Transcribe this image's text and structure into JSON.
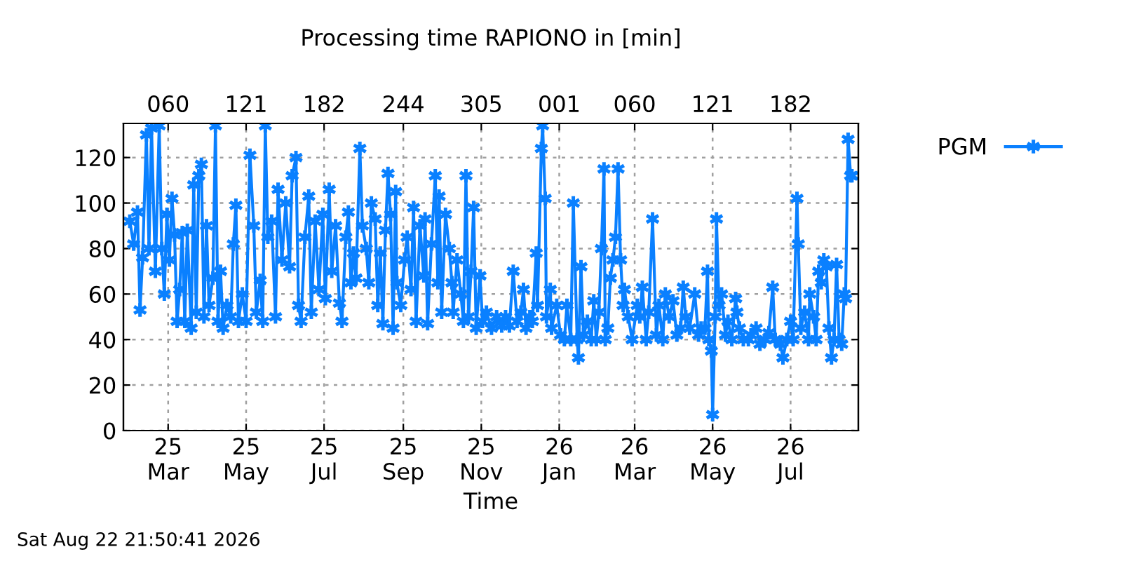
{
  "chart_data": {
    "type": "line",
    "title": "Processing time RAPIONO in [min]",
    "xlabel": "Time",
    "annotations": [
      "Sat Aug 22 21:50:41 2026"
    ],
    "xlim": [
      "2025-01-25",
      "2026-08-23"
    ],
    "xticks": [
      {
        "value": "2025-03-01",
        "label": "25\nMar"
      },
      {
        "value": "2025-05-01",
        "label": "25\nMay"
      },
      {
        "value": "2025-07-01",
        "label": "25\nJul"
      },
      {
        "value": "2025-09-01",
        "label": "25\nSep"
      },
      {
        "value": "2025-11-01",
        "label": "25\nNov"
      },
      {
        "value": "2026-01-01",
        "label": "26\nJan"
      },
      {
        "value": "2026-03-01",
        "label": "26\nMar"
      },
      {
        "value": "2026-05-01",
        "label": "26\nMay"
      },
      {
        "value": "2026-07-01",
        "label": "26\nJul"
      }
    ],
    "x2lim": [
      "2025-01-25",
      "2026-08-23"
    ],
    "x2ticks": [
      {
        "value": "2025-03-01",
        "label": "060"
      },
      {
        "value": "2025-05-01",
        "label": "121"
      },
      {
        "value": "2025-07-01",
        "label": "182"
      },
      {
        "value": "2025-09-01",
        "label": "244"
      },
      {
        "value": "2025-11-01",
        "label": "305"
      },
      {
        "value": "2026-01-01",
        "label": "001"
      },
      {
        "value": "2026-03-01",
        "label": "060"
      },
      {
        "value": "2026-05-01",
        "label": "121"
      },
      {
        "value": "2026-07-01",
        "label": "182"
      }
    ],
    "ylim": [
      0,
      135
    ],
    "yticks": [
      0,
      20,
      40,
      60,
      80,
      100,
      120
    ],
    "grid": true,
    "legend": "top right",
    "marker": "cross",
    "line_style": "solid",
    "series": [
      {
        "name": "PGM",
        "color": "#0a80ff",
        "x": [
          "2025-01-30",
          "2025-02-02",
          "2025-02-05",
          "2025-02-07",
          "2025-02-09",
          "2025-02-12",
          "2025-02-14",
          "2025-02-16",
          "2025-02-19",
          "2025-02-22",
          "2025-02-24",
          "2025-02-26",
          "2025-02-28",
          "2025-03-02",
          "2025-03-04",
          "2025-03-06",
          "2025-03-08",
          "2025-03-10",
          "2025-03-12",
          "2025-03-14",
          "2025-03-16",
          "2025-03-19",
          "2025-03-21",
          "2025-03-23",
          "2025-03-25",
          "2025-03-27",
          "2025-03-29",
          "2025-03-31",
          "2025-04-02",
          "2025-04-05",
          "2025-04-07",
          "2025-04-09",
          "2025-04-11",
          "2025-04-13",
          "2025-04-16",
          "2025-04-19",
          "2025-04-21",
          "2025-04-23",
          "2025-04-25",
          "2025-04-28",
          "2025-05-01",
          "2025-05-04",
          "2025-05-07",
          "2025-05-09",
          "2025-05-12",
          "2025-05-14",
          "2025-05-16",
          "2025-05-18",
          "2025-05-21",
          "2025-05-24",
          "2025-05-26",
          "2025-05-29",
          "2025-06-01",
          "2025-06-04",
          "2025-06-06",
          "2025-06-09",
          "2025-06-11",
          "2025-06-13",
          "2025-06-16",
          "2025-06-19",
          "2025-06-21",
          "2025-06-24",
          "2025-06-27",
          "2025-06-30",
          "2025-07-02",
          "2025-07-05",
          "2025-07-07",
          "2025-07-10",
          "2025-07-13",
          "2025-07-15",
          "2025-07-18",
          "2025-07-20",
          "2025-07-22",
          "2025-07-24",
          "2025-07-26",
          "2025-07-29",
          "2025-07-31",
          "2025-08-03",
          "2025-08-05",
          "2025-08-07",
          "2025-08-10",
          "2025-08-12",
          "2025-08-14",
          "2025-08-16",
          "2025-08-18",
          "2025-08-20",
          "2025-08-22",
          "2025-08-24",
          "2025-08-26",
          "2025-08-27",
          "2025-08-30",
          "2025-09-02",
          "2025-09-04",
          "2025-09-07",
          "2025-09-09",
          "2025-09-11",
          "2025-09-14",
          "2025-09-17",
          "2025-09-18",
          "2025-09-20",
          "2025-09-23",
          "2025-09-26",
          "2025-09-28",
          "2025-09-29",
          "2025-10-01",
          "2025-10-04",
          "2025-10-07",
          "2025-10-09",
          "2025-10-10",
          "2025-10-13",
          "2025-10-16",
          "2025-10-18",
          "2025-10-20",
          "2025-10-22",
          "2025-10-24",
          "2025-10-26",
          "2025-10-28",
          "2025-10-31",
          "2025-11-02",
          "2025-11-05",
          "2025-11-09",
          "2025-11-13",
          "2025-11-17",
          "2025-11-20",
          "2025-11-23",
          "2025-11-26",
          "2025-11-29",
          "2025-12-02",
          "2025-12-04",
          "2025-12-06",
          "2025-12-09",
          "2025-12-11",
          "2025-12-14",
          "2025-12-15",
          "2025-12-18",
          "2025-12-19",
          "2025-12-21",
          "2025-12-22",
          "2025-12-25",
          "2025-12-26",
          "2025-12-30",
          "2026-01-02",
          "2026-01-05",
          "2026-01-07",
          "2026-01-10",
          "2026-01-12",
          "2026-01-15",
          "2026-01-16",
          "2026-01-18",
          "2026-01-20",
          "2026-01-23",
          "2026-01-26",
          "2026-01-28",
          "2026-01-30",
          "2026-02-01",
          "2026-02-03",
          "2026-02-05",
          "2026-02-06",
          "2026-02-08",
          "2026-02-10",
          "2026-02-12",
          "2026-02-14",
          "2026-02-16",
          "2026-02-18",
          "2026-02-20",
          "2026-02-21",
          "2026-02-24",
          "2026-02-27",
          "2026-03-03",
          "2026-03-05",
          "2026-03-07",
          "2026-03-10",
          "2026-03-12",
          "2026-03-15",
          "2026-03-18",
          "2026-03-20",
          "2026-03-23",
          "2026-03-25",
          "2026-03-28",
          "2026-03-31",
          "2026-04-03",
          "2026-04-06",
          "2026-04-08",
          "2026-04-10",
          "2026-04-13",
          "2026-04-17",
          "2026-04-20",
          "2026-04-22",
          "2026-04-25",
          "2026-04-27",
          "2026-04-28",
          "2026-04-30",
          "2026-05-01",
          "2026-05-03",
          "2026-05-04",
          "2026-05-06",
          "2026-05-08",
          "2026-05-11",
          "2026-05-13",
          "2026-05-16",
          "2026-05-19",
          "2026-05-20",
          "2026-05-22",
          "2026-05-25",
          "2026-05-29",
          "2026-05-31",
          "2026-06-04",
          "2026-06-07",
          "2026-06-11",
          "2026-06-14",
          "2026-06-17",
          "2026-06-19",
          "2026-06-23",
          "2026-06-25",
          "2026-06-28",
          "2026-07-01",
          "2026-07-03",
          "2026-07-06",
          "2026-07-07",
          "2026-07-09",
          "2026-07-12",
          "2026-07-15",
          "2026-07-16",
          "2026-07-19",
          "2026-07-21",
          "2026-07-23",
          "2026-07-25",
          "2026-07-27",
          "2026-07-29",
          "2026-07-31",
          "2026-08-02",
          "2026-08-04",
          "2026-08-06",
          "2026-08-08",
          "2026-08-10",
          "2026-08-12",
          "2026-08-13",
          "2026-08-15",
          "2026-08-17",
          "2026-08-18"
        ],
        "values": [
          92,
          82,
          96,
          53,
          76,
          130,
          80,
          133,
          70,
          134,
          80,
          60,
          95,
          75,
          102,
          86,
          48,
          62,
          87,
          48,
          88,
          45,
          108,
          52,
          112,
          117,
          50,
          90,
          55,
          67,
          134,
          48,
          70,
          45,
          55,
          50,
          82,
          99,
          48,
          60,
          48,
          121,
          90,
          52,
          66,
          48,
          134,
          85,
          92,
          50,
          106,
          75,
          100,
          72,
          112,
          120,
          55,
          48,
          85,
          103,
          52,
          92,
          62,
          95,
          58,
          106,
          70,
          90,
          56,
          48,
          85,
          96,
          65,
          78,
          67,
          124,
          90,
          80,
          65,
          100,
          93,
          55,
          78,
          47,
          88,
          113,
          95,
          45,
          105,
          65,
          55,
          75,
          85,
          62,
          98,
          48,
          90,
          68,
          93,
          47,
          82,
          112,
          65,
          103,
          52,
          95,
          80,
          65,
          52,
          75,
          60,
          48,
          112,
          50,
          70,
          98,
          45,
          68,
          48,
          52,
          45,
          50,
          46,
          50,
          46,
          70,
          48,
          52,
          62,
          45,
          50,
          48,
          78,
          55,
          124,
          134,
          102,
          50,
          62,
          45,
          55,
          42,
          40,
          55,
          40,
          100,
          40,
          32,
          72,
          42,
          48,
          40,
          57,
          40,
          52,
          80,
          115,
          40,
          45,
          67,
          75,
          85,
          115,
          75,
          55,
          62,
          50,
          40,
          55,
          50,
          63,
          40,
          52,
          93,
          42,
          55,
          40,
          60,
          50,
          57,
          42,
          45,
          63,
          50,
          45,
          60,
          42,
          45,
          45,
          70,
          40,
          35,
          7,
          50,
          93,
          55,
          60,
          42,
          48,
          40,
          58,
          52,
          45,
          40,
          40,
          42,
          45,
          38,
          40,
          43,
          63,
          40,
          38,
          32,
          40,
          48,
          40,
          102,
          82,
          45,
          52,
          40,
          60,
          50,
          40,
          70,
          65,
          75,
          72,
          45,
          32,
          40,
          73,
          40,
          38,
          60,
          58,
          128,
          112,
          112
        ]
      }
    ]
  }
}
